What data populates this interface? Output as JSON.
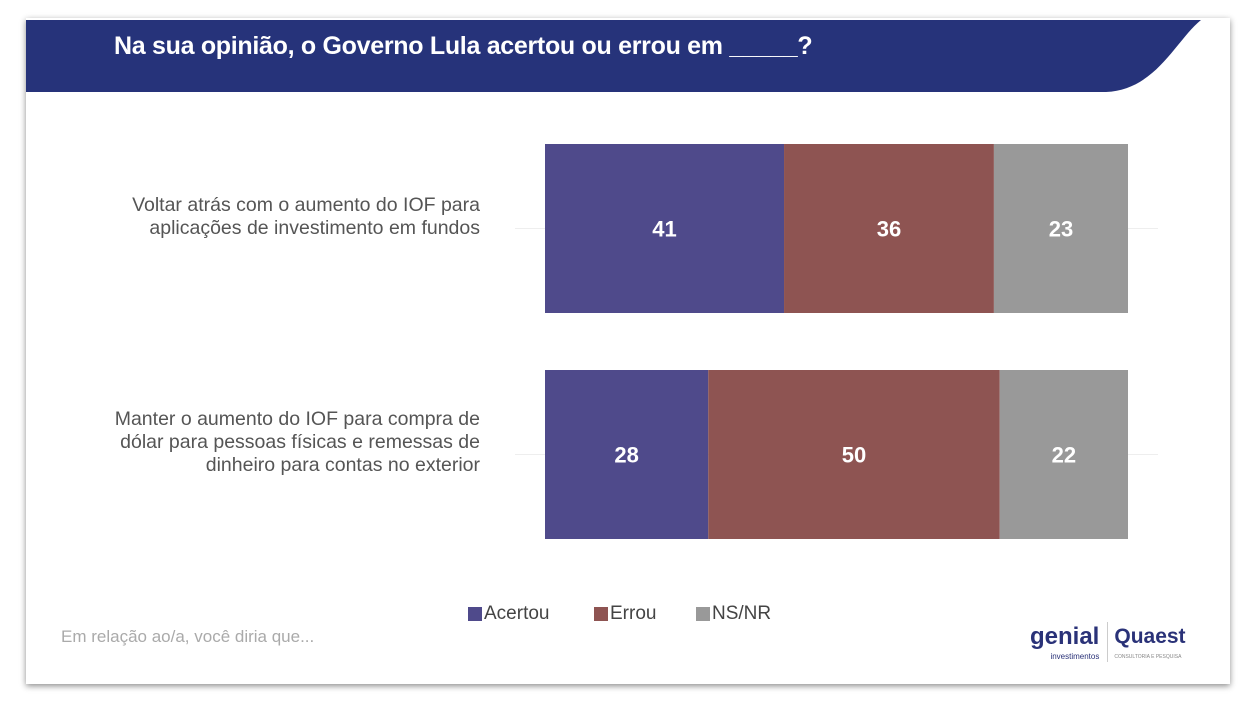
{
  "title": "Na sua opinião, o Governo Lula acertou ou errou em _____?",
  "footnote": "Em relação ao/a, você diria que...",
  "logos": {
    "genial": "genial",
    "genial_sub": "investimentos",
    "quaest": "Quaest",
    "quaest_sub": "CONSULTORIA E PESQUISA"
  },
  "chart_data": {
    "type": "bar",
    "orientation": "horizontal",
    "stacked": true,
    "categories": [
      "Voltar atrás com o aumento do IOF para aplicações de investimento em fundos",
      "Manter o aumento do IOF para compra de dólar para pessoas físicas e remessas de dinheiro para contas no exterior"
    ],
    "series": [
      {
        "name": "Acertou",
        "color": "#4F4A8B",
        "values": [
          41,
          28
        ]
      },
      {
        "name": "Errou",
        "color": "#8E5452",
        "values": [
          36,
          50
        ]
      },
      {
        "name": "NS/NR",
        "color": "#999999",
        "values": [
          23,
          22
        ]
      }
    ],
    "xlim": [
      0,
      100
    ],
    "legend": "bottom",
    "grid": false
  }
}
